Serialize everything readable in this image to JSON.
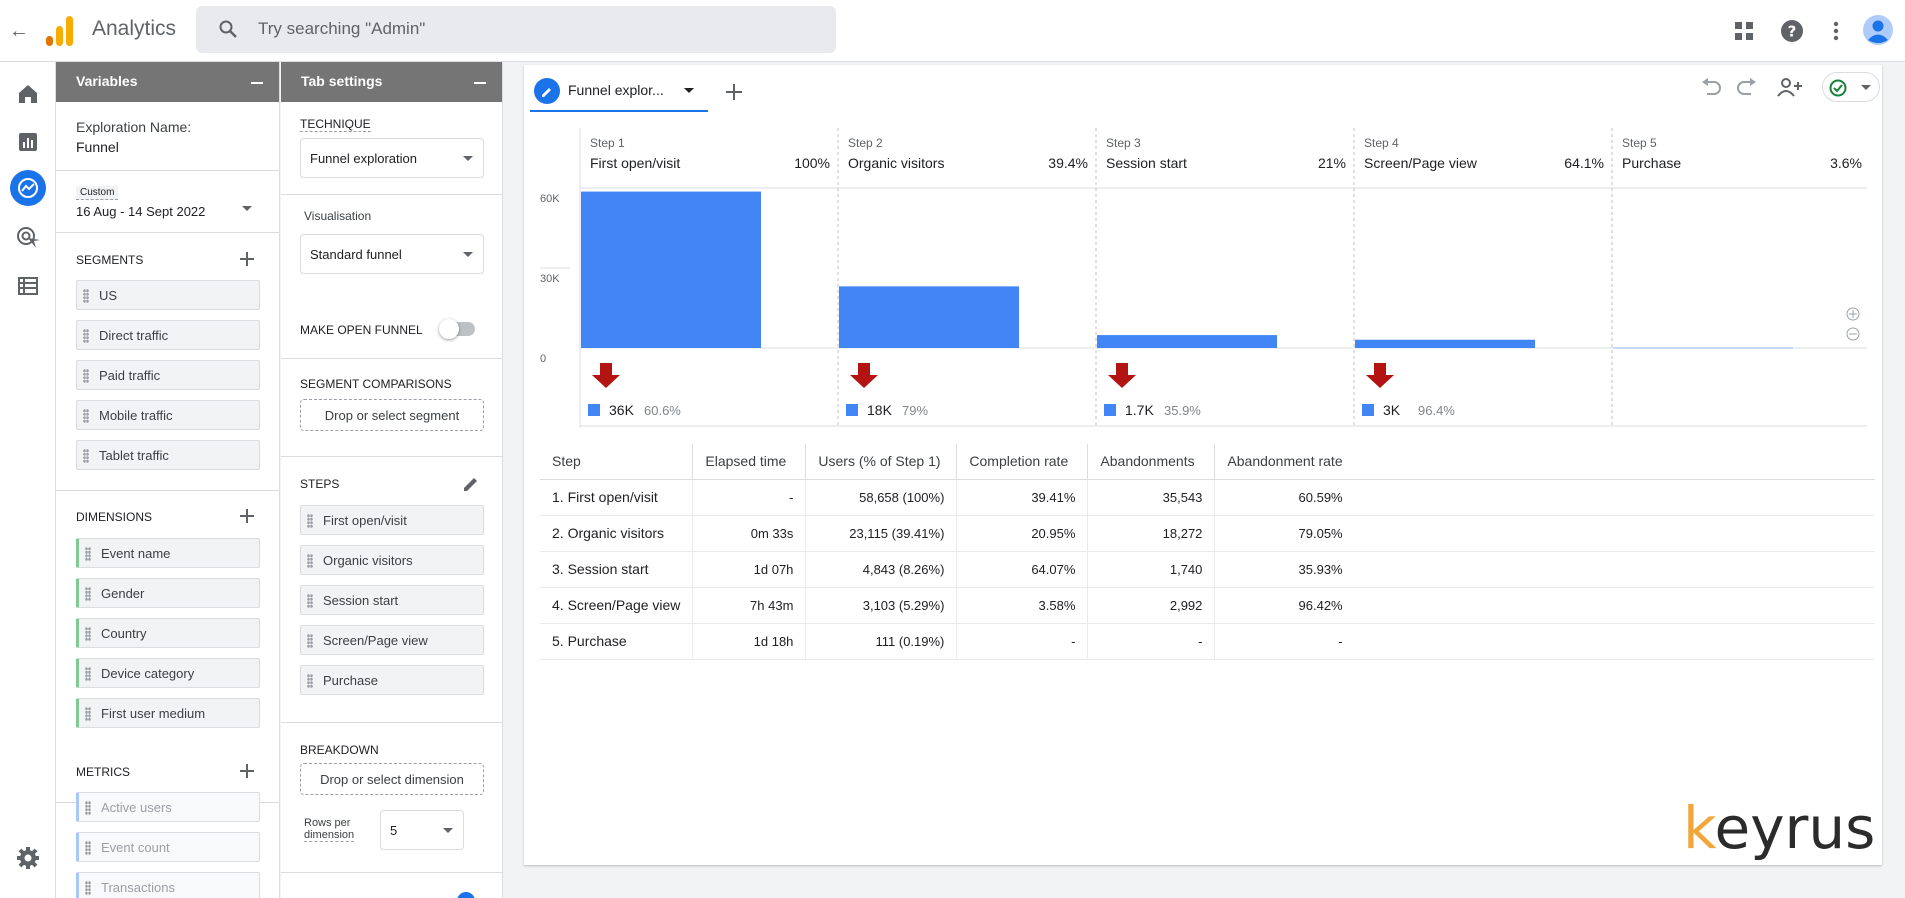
{
  "header": {
    "app_title": "Analytics",
    "search_placeholder": "Try searching \"Admin\""
  },
  "variables": {
    "title": "Variables",
    "exploration_label": "Exploration Name:",
    "exploration_name": "Funnel",
    "date_badge": "Custom",
    "date_range": "16 Aug - 14 Sept 2022",
    "segments_label": "SEGMENTS",
    "segments": [
      "US",
      "Direct traffic",
      "Paid traffic",
      "Mobile traffic",
      "Tablet traffic"
    ],
    "dimensions_label": "DIMENSIONS",
    "dimensions": [
      "Event name",
      "Gender",
      "Country",
      "Device category",
      "First user medium"
    ],
    "metrics_label": "METRICS",
    "metrics": [
      "Active users",
      "Event count",
      "Transactions"
    ]
  },
  "tab_settings": {
    "title": "Tab settings",
    "technique_label": "TECHNIQUE",
    "technique_value": "Funnel exploration",
    "visualisation_label": "Visualisation",
    "visualisation_value": "Standard funnel",
    "open_funnel_label": "MAKE OPEN FUNNEL",
    "open_funnel_on": false,
    "segment_comparisons_label": "SEGMENT COMPARISONS",
    "segment_drop": "Drop or select segment",
    "steps_label": "STEPS",
    "steps": [
      "First open/visit",
      "Organic visitors",
      "Session start",
      "Screen/Page view",
      "Purchase"
    ],
    "breakdown_label": "BREAKDOWN",
    "breakdown_drop": "Drop or select dimension",
    "rows_label_1": "Rows per",
    "rows_label_2": "dimension",
    "rows_value": "5"
  },
  "tab": {
    "label": "Funnel explor..."
  },
  "chart_data": {
    "type": "bar",
    "title": "",
    "categories": [
      "First open/visit",
      "Organic visitors",
      "Session start",
      "Screen/Page view",
      "Purchase"
    ],
    "step_labels": [
      "Step 1",
      "Step 2",
      "Step 3",
      "Step 4",
      "Step 5"
    ],
    "step_percent": [
      "100%",
      "39.4%",
      "21%",
      "64.1%",
      "3.6%"
    ],
    "values": [
      58658,
      23115,
      4843,
      3103,
      111
    ],
    "ylim": [
      0,
      60000
    ],
    "ytick_labels": [
      "60K",
      "30K",
      "0"
    ],
    "abandon_values": [
      "36K",
      "18K",
      "1.7K",
      "3K"
    ],
    "abandon_rates": [
      "60.6%",
      "79%",
      "35.9%",
      "96.4%"
    ],
    "bar_color": "#4285f4",
    "drop_arrow_color": "#b31412"
  },
  "table": {
    "headers": [
      "Step",
      "Elapsed time",
      "Users (% of Step 1)",
      "Completion rate",
      "Abandonments",
      "Abandonment rate"
    ],
    "rows": [
      [
        "1. First open/visit",
        "-",
        "58,658 (100%)",
        "39.41%",
        "35,543",
        "60.59%"
      ],
      [
        "2. Organic visitors",
        "0m 33s",
        "23,115 (39.41%)",
        "20.95%",
        "18,272",
        "79.05%"
      ],
      [
        "3. Session start",
        "1d 07h",
        "4,843 (8.26%)",
        "64.07%",
        "1,740",
        "35.93%"
      ],
      [
        "4. Screen/Page view",
        "7h 43m",
        "3,103 (5.29%)",
        "3.58%",
        "2,992",
        "96.42%"
      ],
      [
        "5. Purchase",
        "1d 18h",
        "111 (0.19%)",
        "-",
        "-",
        "-"
      ]
    ]
  },
  "watermark": "keyrus",
  "colors": {
    "accent": "#1a73e8",
    "brand_orange": "#f9ab00",
    "brand_dark_orange": "#e37400",
    "keyrus_k": "#f0a63a",
    "keyrus_teal": "#29a8c8"
  }
}
